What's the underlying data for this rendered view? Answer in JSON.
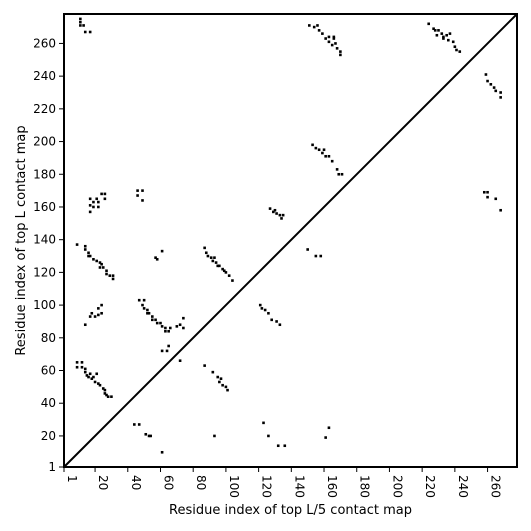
{
  "chart_data": {
    "type": "scatter",
    "title": "",
    "xlabel": "Residue index of top L/5 contact map",
    "ylabel": "Residue index of top L contact map",
    "xlim": [
      1,
      278
    ],
    "ylim": [
      1,
      278
    ],
    "xticks": [
      1,
      20,
      40,
      60,
      80,
      100,
      120,
      140,
      160,
      180,
      200,
      220,
      240,
      260
    ],
    "xtick_labels": [
      "1",
      "20",
      "40",
      "60",
      "80",
      "100",
      "120",
      "140",
      "160",
      "180",
      "200",
      "220",
      "240",
      "260"
    ],
    "yticks": [
      1,
      20,
      40,
      60,
      80,
      100,
      120,
      140,
      160,
      180,
      200,
      220,
      240,
      260
    ],
    "ytick_labels": [
      "1",
      "20",
      "40",
      "60",
      "80",
      "100",
      "120",
      "140",
      "160",
      "180",
      "200",
      "220",
      "240",
      "260"
    ],
    "diagonal": true,
    "grid": false,
    "marker_color": "#000000",
    "points": [
      [
        11,
        275
      ],
      [
        11,
        273
      ],
      [
        11,
        271
      ],
      [
        13,
        271
      ],
      [
        14,
        267
      ],
      [
        17,
        267
      ],
      [
        9,
        137
      ],
      [
        14,
        136
      ],
      [
        14,
        134
      ],
      [
        16,
        132
      ],
      [
        16,
        130
      ],
      [
        17,
        130
      ],
      [
        19,
        128
      ],
      [
        21,
        127
      ],
      [
        23,
        126
      ],
      [
        24,
        125
      ],
      [
        25,
        123
      ],
      [
        23,
        123
      ],
      [
        27,
        121
      ],
      [
        27,
        119
      ],
      [
        29,
        118
      ],
      [
        31,
        118
      ],
      [
        31,
        116
      ],
      [
        17,
        165
      ],
      [
        17,
        161
      ],
      [
        19,
        163
      ],
      [
        19,
        160
      ],
      [
        21,
        165
      ],
      [
        22,
        163
      ],
      [
        22,
        160
      ],
      [
        24,
        168
      ],
      [
        26,
        168
      ],
      [
        26,
        165
      ],
      [
        17,
        157
      ],
      [
        14,
        88
      ],
      [
        17,
        93
      ],
      [
        18,
        95
      ],
      [
        20,
        93
      ],
      [
        22,
        94
      ],
      [
        22,
        98
      ],
      [
        24,
        100
      ],
      [
        24,
        95
      ],
      [
        9,
        65
      ],
      [
        9,
        62
      ],
      [
        12,
        65
      ],
      [
        12,
        62
      ],
      [
        14,
        61
      ],
      [
        14,
        59
      ],
      [
        15,
        57
      ],
      [
        16,
        56
      ],
      [
        17,
        58
      ],
      [
        18,
        55
      ],
      [
        19,
        56
      ],
      [
        20,
        53
      ],
      [
        21,
        58
      ],
      [
        22,
        52
      ],
      [
        23,
        51
      ],
      [
        25,
        49
      ],
      [
        26,
        48
      ],
      [
        26,
        46
      ],
      [
        27,
        45
      ],
      [
        28,
        44
      ],
      [
        30,
        44
      ],
      [
        44,
        27
      ],
      [
        47,
        27
      ],
      [
        51,
        21
      ],
      [
        53,
        20
      ],
      [
        54,
        20
      ],
      [
        61,
        10
      ],
      [
        46,
        170
      ],
      [
        46,
        167
      ],
      [
        49,
        170
      ],
      [
        49,
        164
      ],
      [
        57,
        129
      ],
      [
        58,
        128
      ],
      [
        61,
        133
      ],
      [
        47,
        103
      ],
      [
        49,
        100
      ],
      [
        50,
        103
      ],
      [
        50,
        98
      ],
      [
        52,
        97
      ],
      [
        52,
        95
      ],
      [
        53,
        95
      ],
      [
        55,
        93
      ],
      [
        55,
        91
      ],
      [
        57,
        91
      ],
      [
        58,
        89
      ],
      [
        60,
        89
      ],
      [
        61,
        87
      ],
      [
        63,
        86
      ],
      [
        63,
        84
      ],
      [
        65,
        84
      ],
      [
        66,
        86
      ],
      [
        70,
        87
      ],
      [
        72,
        88
      ],
      [
        74,
        86
      ],
      [
        74,
        92
      ],
      [
        61,
        72
      ],
      [
        64,
        72
      ],
      [
        65,
        75
      ],
      [
        72,
        66
      ],
      [
        87,
        135
      ],
      [
        88,
        132
      ],
      [
        89,
        130
      ],
      [
        91,
        129
      ],
      [
        92,
        127
      ],
      [
        93,
        129
      ],
      [
        94,
        126
      ],
      [
        95,
        124
      ],
      [
        96,
        124
      ],
      [
        98,
        122
      ],
      [
        99,
        121
      ],
      [
        100,
        120
      ],
      [
        102,
        118
      ],
      [
        104,
        115
      ],
      [
        87,
        63
      ],
      [
        92,
        59
      ],
      [
        95,
        56
      ],
      [
        96,
        53
      ],
      [
        97,
        55
      ],
      [
        98,
        51
      ],
      [
        100,
        50
      ],
      [
        101,
        48
      ],
      [
        93,
        20
      ],
      [
        121,
        100
      ],
      [
        122,
        98
      ],
      [
        124,
        97
      ],
      [
        126,
        95
      ],
      [
        128,
        91
      ],
      [
        131,
        90
      ],
      [
        133,
        88
      ],
      [
        123,
        28
      ],
      [
        126,
        20
      ],
      [
        132,
        14
      ],
      [
        136,
        14
      ],
      [
        127,
        159
      ],
      [
        129,
        157
      ],
      [
        130,
        158
      ],
      [
        131,
        156
      ],
      [
        133,
        155
      ],
      [
        134,
        153
      ],
      [
        135,
        155
      ],
      [
        150,
        134
      ],
      [
        155,
        130
      ],
      [
        158,
        130
      ],
      [
        161,
        19
      ],
      [
        163,
        25
      ],
      [
        151,
        271
      ],
      [
        154,
        270
      ],
      [
        156,
        271
      ],
      [
        157,
        268
      ],
      [
        159,
        266
      ],
      [
        161,
        263
      ],
      [
        163,
        261
      ],
      [
        165,
        259
      ],
      [
        166,
        263
      ],
      [
        167,
        260
      ],
      [
        168,
        257
      ],
      [
        170,
        255
      ],
      [
        170,
        253
      ],
      [
        166,
        264
      ],
      [
        163,
        264
      ],
      [
        153,
        198
      ],
      [
        155,
        196
      ],
      [
        157,
        195
      ],
      [
        159,
        193
      ],
      [
        160,
        195
      ],
      [
        161,
        191
      ],
      [
        163,
        191
      ],
      [
        165,
        188
      ],
      [
        168,
        183
      ],
      [
        169,
        180
      ],
      [
        171,
        180
      ],
      [
        224,
        272
      ],
      [
        227,
        269
      ],
      [
        228,
        268
      ],
      [
        229,
        265
      ],
      [
        230,
        268
      ],
      [
        232,
        266
      ],
      [
        233,
        264
      ],
      [
        233,
        263
      ],
      [
        235,
        265
      ],
      [
        236,
        262
      ],
      [
        239,
        261
      ],
      [
        240,
        258
      ],
      [
        241,
        256
      ],
      [
        243,
        255
      ],
      [
        237,
        266
      ],
      [
        259,
        241
      ],
      [
        260,
        237
      ],
      [
        262,
        235
      ],
      [
        264,
        233
      ],
      [
        265,
        231
      ],
      [
        268,
        230
      ],
      [
        268,
        227
      ],
      [
        258,
        169
      ],
      [
        260,
        169
      ],
      [
        260,
        166
      ],
      [
        265,
        165
      ],
      [
        268,
        158
      ]
    ]
  }
}
